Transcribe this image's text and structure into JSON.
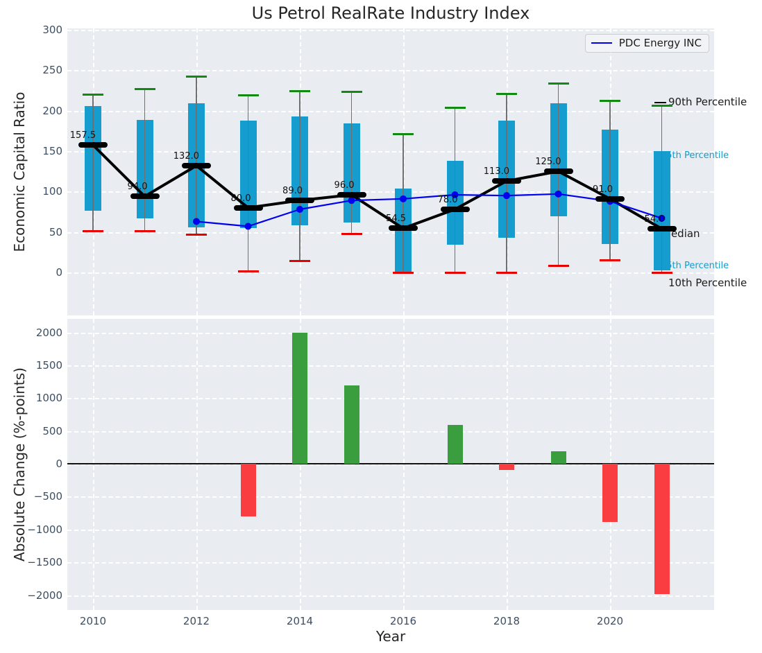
{
  "title": "Us Petrol RealRate Industry Index",
  "legend": {
    "label": "PDC Energy INC"
  },
  "annotations": [
    {
      "text": "90th Percentile",
      "color": "#1a1a1a"
    },
    {
      "text": "75th Percentile",
      "color": "#149dce"
    },
    {
      "text": "Median",
      "color": "#1a1a1a"
    },
    {
      "text": "25th Percentile",
      "color": "#149dce"
    },
    {
      "text": "10th Percentile",
      "color": "#1a1a1a"
    }
  ],
  "colors": {
    "plot_background": "#e9edf1",
    "grid": "#ffffff",
    "box_fill": "#149dce",
    "whisker_line": "#707070",
    "p90_cap": "#128a12",
    "p10_cap": "#e60000",
    "median": "#000000",
    "pdc_line": "#0000ee",
    "bar_positive": "#3a9e3f",
    "bar_negative": "#fa3d40",
    "tick_label": "#3e4e61",
    "text": "#262626"
  },
  "chart_data": [
    {
      "type": "boxplot",
      "title": "Us Petrol RealRate Industry Index",
      "ylabel": "Economic Capital Ratio",
      "ylim": [
        -53,
        302
      ],
      "yticks": [
        0,
        50,
        100,
        150,
        200,
        250,
        300
      ],
      "xticks": [
        2010,
        2012,
        2014,
        2016,
        2018,
        2020
      ],
      "grid": true,
      "legend_position": "upper right",
      "years": [
        2010,
        2011,
        2012,
        2013,
        2014,
        2015,
        2016,
        2017,
        2018,
        2019,
        2020,
        2021
      ],
      "percentile_90": [
        220,
        227,
        242,
        219,
        224,
        223,
        171,
        204,
        221,
        234,
        212,
        206
      ],
      "percentile_75": [
        206,
        189,
        209,
        188,
        193,
        184,
        104,
        138,
        188,
        209,
        177,
        150
      ],
      "median": [
        157.5,
        94.0,
        132.0,
        80.0,
        89.0,
        96.0,
        54.5,
        78.0,
        113.0,
        125.0,
        91.0,
        54.0
      ],
      "percentile_25": [
        76,
        67,
        56,
        55,
        58,
        62,
        0,
        34,
        43,
        69,
        35,
        3
      ],
      "percentile_10": [
        51,
        51,
        47,
        1,
        14,
        48,
        0,
        0,
        0,
        8,
        15,
        0
      ],
      "line_series": {
        "name": "PDC Energy INC",
        "years": [
          2012,
          2013,
          2014,
          2015,
          2016,
          2017,
          2018,
          2019,
          2020,
          2021
        ],
        "values": [
          63,
          57,
          78,
          89,
          91,
          96,
          95,
          97,
          88,
          67
        ]
      }
    },
    {
      "type": "bar",
      "ylabel": "Absolute Change (%-points)",
      "xlabel": "Year",
      "ylim": [
        -2200,
        2200
      ],
      "yticks": [
        -2000,
        -1500,
        -1000,
        -500,
        0,
        500,
        1000,
        1500,
        2000
      ],
      "xticks": [
        2010,
        2012,
        2014,
        2016,
        2018,
        2020
      ],
      "grid": true,
      "years": [
        2010,
        2011,
        2012,
        2013,
        2014,
        2015,
        2016,
        2017,
        2018,
        2019,
        2020,
        2021
      ],
      "values": [
        null,
        null,
        null,
        -800,
        1990,
        1190,
        null,
        590,
        -100,
        190,
        -890,
        -1980
      ]
    }
  ]
}
